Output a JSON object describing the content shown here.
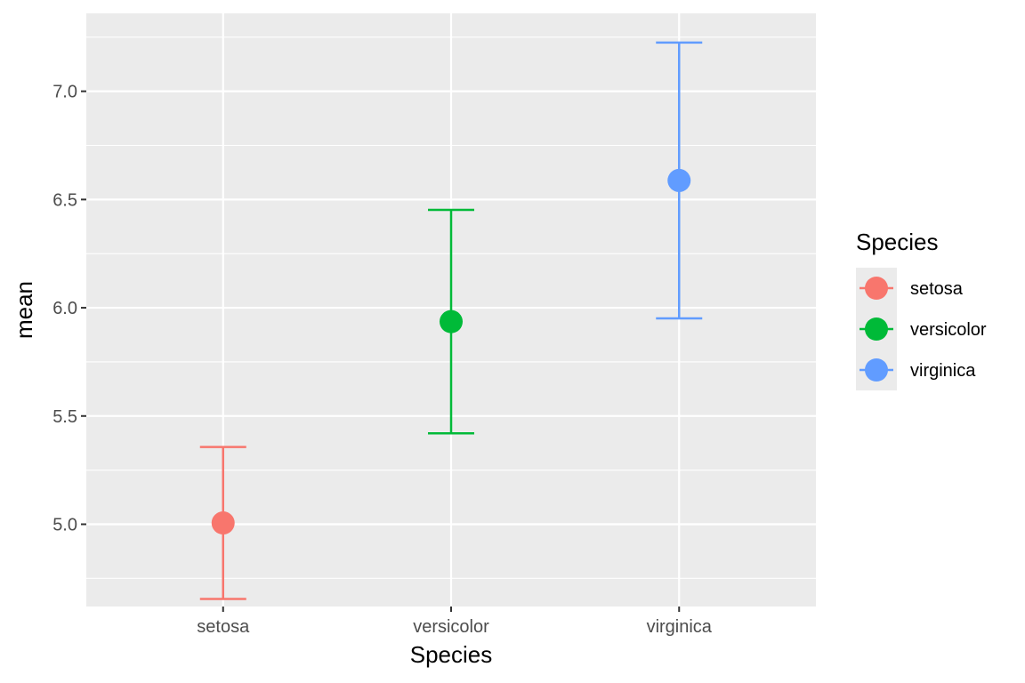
{
  "chart_data": {
    "type": "scatter",
    "subtype": "point-with-errorbars",
    "title": "",
    "xlabel": "Species",
    "ylabel": "mean",
    "categories": [
      "setosa",
      "versicolor",
      "virginica"
    ],
    "series": [
      {
        "name": "setosa",
        "color": "#F8766D",
        "mean": 5.006,
        "lower": 4.655,
        "upper": 5.357
      },
      {
        "name": "versicolor",
        "color": "#00BA38",
        "mean": 5.936,
        "lower": 5.42,
        "upper": 6.452
      },
      {
        "name": "virginica",
        "color": "#619CFF",
        "mean": 6.588,
        "lower": 5.951,
        "upper": 7.225
      }
    ],
    "yticks": [
      "5.0",
      "5.5",
      "6.0",
      "6.5",
      "7.0"
    ],
    "ytick_values": [
      5.0,
      5.5,
      6.0,
      6.5,
      7.0
    ],
    "ylim": [
      4.62,
      7.36
    ],
    "grid": true,
    "legend": {
      "title": "Species",
      "placement": "right",
      "entries": [
        "setosa",
        "versicolor",
        "virginica"
      ]
    },
    "colors": {
      "panel": "#EBEBEB",
      "grid": "#FFFFFF",
      "tick_text": "#4D4D4D"
    }
  }
}
